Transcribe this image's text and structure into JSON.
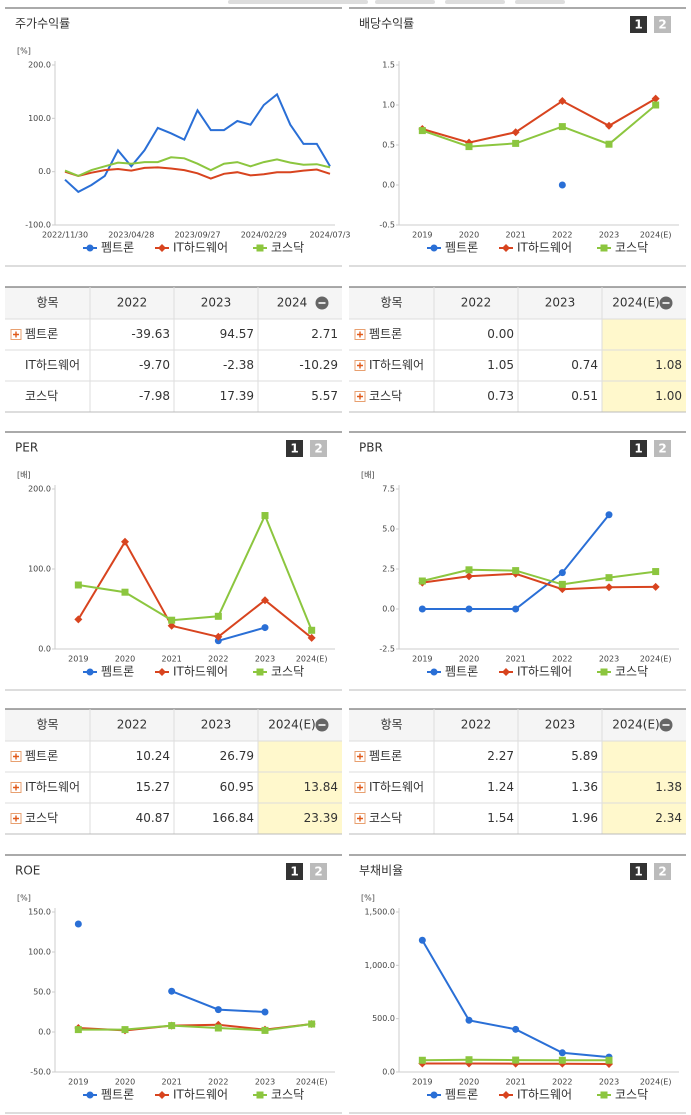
{
  "chart_data": [
    {
      "type": "line",
      "title": "주가수익률",
      "ylabel": "[%]",
      "markers": false,
      "categories": [
        "2022/11/30",
        null,
        null,
        null,
        null,
        "2023/04/28",
        null,
        null,
        null,
        null,
        "2023/09/27",
        null,
        null,
        null,
        null,
        "2024/02/29",
        null,
        null,
        null,
        null,
        "2024/07/3"
      ],
      "ylim": [
        -100,
        200
      ],
      "yticks": [
        {
          "value": 200,
          "label": "200.0"
        },
        {
          "value": 100,
          "label": "100.0"
        },
        {
          "value": 0,
          "label": "0.0"
        },
        {
          "value": -100,
          "label": "-100.0"
        }
      ],
      "series": [
        {
          "name": "펨트론",
          "color": "#2a6fd6",
          "marker": "circle",
          "values": [
            -15,
            -38,
            -25,
            -8,
            40,
            10,
            40,
            82,
            72,
            60,
            115,
            78,
            78,
            95,
            88,
            125,
            145,
            88,
            52,
            52,
            10
          ]
        },
        {
          "name": "IT하드웨어",
          "color": "#d8441f",
          "marker": "diamond",
          "values": [
            0,
            -8,
            -2,
            3,
            5,
            2,
            7,
            8,
            6,
            3,
            -3,
            -13,
            -4,
            -1,
            -7,
            -5,
            -1,
            -1,
            2,
            4,
            -4
          ]
        },
        {
          "name": "코스닥",
          "color": "#8cc63f",
          "marker": "square",
          "values": [
            2,
            -8,
            3,
            10,
            17,
            15,
            18,
            18,
            27,
            25,
            15,
            3,
            15,
            18,
            10,
            18,
            23,
            17,
            13,
            14,
            8
          ]
        }
      ]
    },
    {
      "type": "line",
      "title": "배당수익률",
      "buttons": [
        "1",
        "2"
      ],
      "markers": true,
      "categories": [
        "2019",
        "2020",
        "2021",
        "2022",
        "2023",
        "2024(E)"
      ],
      "ylim": [
        -0.5,
        1.5
      ],
      "yticks": [
        1.5,
        {
          "value": 1,
          "label": "1.0"
        },
        0.5,
        {
          "value": 0,
          "label": "0.0"
        },
        -0.5
      ],
      "series": [
        {
          "name": "펨트론",
          "color": "#2a6fd6",
          "marker": "circle",
          "values": [
            null,
            null,
            null,
            0.0,
            null,
            null
          ]
        },
        {
          "name": "IT하드웨어",
          "color": "#d8441f",
          "marker": "diamond",
          "values": [
            0.7,
            0.53,
            0.66,
            1.05,
            0.74,
            1.08
          ]
        },
        {
          "name": "코스닥",
          "color": "#8cc63f",
          "marker": "square",
          "values": [
            0.68,
            0.48,
            0.52,
            0.73,
            0.51,
            1.0
          ]
        }
      ]
    },
    {
      "type": "line",
      "title": "PER",
      "ylabel": "[배]",
      "buttons": [
        "1",
        "2"
      ],
      "markers": true,
      "categories": [
        "2019",
        "2020",
        "2021",
        "2022",
        "2023",
        "2024(E)"
      ],
      "ylim": [
        0,
        200
      ],
      "yticks": [
        {
          "value": 200,
          "label": "200.0"
        },
        {
          "value": 100,
          "label": "100.0"
        },
        {
          "value": 0,
          "label": "0.0"
        }
      ],
      "series": [
        {
          "name": "펨트론",
          "color": "#2a6fd6",
          "marker": "circle",
          "values": [
            null,
            null,
            null,
            10.24,
            26.79,
            null
          ]
        },
        {
          "name": "IT하드웨어",
          "color": "#d8441f",
          "marker": "diamond",
          "values": [
            37,
            134,
            29,
            15.27,
            60.95,
            13.84
          ]
        },
        {
          "name": "코스닥",
          "color": "#8cc63f",
          "marker": "square",
          "values": [
            80,
            71,
            36,
            40.87,
            166.84,
            23.39
          ]
        }
      ]
    },
    {
      "type": "line",
      "title": "PBR",
      "ylabel": "[배]",
      "buttons": [
        "1",
        "2"
      ],
      "markers": true,
      "categories": [
        "2019",
        "2020",
        "2021",
        "2022",
        "2023",
        "2024(E)"
      ],
      "ylim": [
        -2.5,
        7.5
      ],
      "yticks": [
        7.5,
        {
          "value": 5,
          "label": "5.0"
        },
        2.5,
        {
          "value": 0,
          "label": "0.0"
        },
        -2.5
      ],
      "series": [
        {
          "name": "펨트론",
          "color": "#2a6fd6",
          "marker": "circle",
          "values": [
            0,
            0,
            0,
            2.27,
            5.89,
            null
          ]
        },
        {
          "name": "IT하드웨어",
          "color": "#d8441f",
          "marker": "diamond",
          "values": [
            1.65,
            2.05,
            2.2,
            1.24,
            1.36,
            1.38
          ]
        },
        {
          "name": "코스닥",
          "color": "#8cc63f",
          "marker": "square",
          "values": [
            1.75,
            2.45,
            2.4,
            1.54,
            1.96,
            2.34
          ]
        }
      ]
    },
    {
      "type": "line",
      "title": "ROE",
      "ylabel": "[%]",
      "buttons": [
        "1",
        "2"
      ],
      "markers": true,
      "categories": [
        "2019",
        "2020",
        "2021",
        "2022",
        "2023",
        "2024(E)"
      ],
      "ylim": [
        -50,
        150
      ],
      "yticks": [
        {
          "value": 150,
          "label": "150.0"
        },
        {
          "value": 100,
          "label": "100.0"
        },
        {
          "value": 50,
          "label": "50.0"
        },
        {
          "value": 0,
          "label": "0.0"
        },
        {
          "value": -50,
          "label": "-50.0"
        }
      ],
      "series": [
        {
          "name": "펨트론",
          "color": "#2a6fd6",
          "marker": "circle",
          "values": [
            135,
            null,
            51,
            28,
            25,
            null
          ]
        },
        {
          "name": "IT하드웨어",
          "color": "#d8441f",
          "marker": "diamond",
          "values": [
            5,
            2,
            8,
            9,
            3,
            10
          ]
        },
        {
          "name": "코스닥",
          "color": "#8cc63f",
          "marker": "square",
          "values": [
            3,
            3,
            8,
            5,
            2,
            10
          ]
        }
      ]
    },
    {
      "type": "line",
      "title": "부채비율",
      "ylabel": "[%]",
      "buttons": [
        "1",
        "2"
      ],
      "markers": true,
      "categories": [
        "2019",
        "2020",
        "2021",
        "2022",
        "2023",
        "2024(E)"
      ],
      "ylim": [
        0,
        1500
      ],
      "yticks": [
        {
          "value": 1500,
          "label": "1,500.0"
        },
        {
          "value": 1000,
          "label": "1,000.0"
        },
        {
          "value": 500,
          "label": "500.0"
        },
        {
          "value": 0,
          "label": "0.0"
        }
      ],
      "series": [
        {
          "name": "펨트론",
          "color": "#2a6fd6",
          "marker": "circle",
          "values": [
            1235,
            485,
            400,
            180,
            140,
            null
          ]
        },
        {
          "name": "IT하드웨어",
          "color": "#d8441f",
          "marker": "diamond",
          "values": [
            80,
            80,
            78,
            78,
            75,
            null
          ]
        },
        {
          "name": "코스닥",
          "color": "#8cc63f",
          "marker": "square",
          "values": [
            110,
            115,
            112,
            110,
            110,
            null
          ]
        }
      ]
    }
  ],
  "tables": [
    {
      "columns": [
        "항목",
        "2022",
        "2023",
        "2024"
      ],
      "highlight_last": false,
      "rows": [
        {
          "name": "펨트론",
          "expandable": true,
          "values": [
            "-39.63",
            "94.57",
            "2.71"
          ]
        },
        {
          "name": "IT하드웨어",
          "expandable": false,
          "values": [
            "-9.70",
            "-2.38",
            "-10.29"
          ]
        },
        {
          "name": "코스닥",
          "expandable": false,
          "values": [
            "-7.98",
            "17.39",
            "5.57"
          ]
        }
      ]
    },
    {
      "columns": [
        "항목",
        "2022",
        "2023",
        "2024(E)"
      ],
      "highlight_last": true,
      "rows": [
        {
          "name": "펨트론",
          "expandable": true,
          "values": [
            "0.00",
            null,
            null
          ]
        },
        {
          "name": "IT하드웨어",
          "expandable": true,
          "values": [
            "1.05",
            "0.74",
            "1.08"
          ]
        },
        {
          "name": "코스닥",
          "expandable": true,
          "values": [
            "0.73",
            "0.51",
            "1.00"
          ]
        }
      ]
    },
    {
      "columns": [
        "항목",
        "2022",
        "2023",
        "2024(E)"
      ],
      "highlight_last": true,
      "rows": [
        {
          "name": "펨트론",
          "expandable": true,
          "values": [
            "10.24",
            "26.79",
            null
          ]
        },
        {
          "name": "IT하드웨어",
          "expandable": true,
          "values": [
            "15.27",
            "60.95",
            "13.84"
          ]
        },
        {
          "name": "코스닥",
          "expandable": true,
          "values": [
            "40.87",
            "166.84",
            "23.39"
          ]
        }
      ]
    },
    {
      "columns": [
        "항목",
        "2022",
        "2023",
        "2024(E)"
      ],
      "highlight_last": true,
      "rows": [
        {
          "name": "펨트론",
          "expandable": true,
          "values": [
            "2.27",
            "5.89",
            null
          ]
        },
        {
          "name": "IT하드웨어",
          "expandable": true,
          "values": [
            "1.24",
            "1.36",
            "1.38"
          ]
        },
        {
          "name": "코스닥",
          "expandable": true,
          "values": [
            "1.54",
            "1.96",
            "2.34"
          ]
        }
      ]
    }
  ]
}
